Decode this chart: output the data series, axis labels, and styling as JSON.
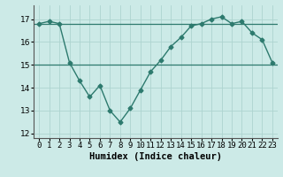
{
  "x": [
    0,
    1,
    2,
    3,
    4,
    5,
    6,
    7,
    8,
    9,
    10,
    11,
    12,
    13,
    14,
    15,
    16,
    17,
    18,
    19,
    20,
    21,
    22,
    23
  ],
  "y": [
    16.8,
    16.9,
    16.8,
    15.1,
    14.3,
    13.6,
    14.1,
    13.0,
    12.5,
    13.1,
    13.9,
    14.7,
    15.2,
    15.8,
    16.2,
    16.7,
    16.8,
    17.0,
    17.1,
    16.8,
    16.9,
    16.4,
    16.1,
    15.1
  ],
  "hline1_y": 16.8,
  "hline2_y": 15.0,
  "line_color": "#2d7a6e",
  "hline_color": "#2d7a6e",
  "bg_color": "#cceae7",
  "grid_color": "#aed4d0",
  "xlabel": "Humidex (Indice chaleur)",
  "ylim": [
    11.8,
    17.6
  ],
  "xlim": [
    -0.5,
    23.5
  ],
  "yticks": [
    12,
    13,
    14,
    15,
    16,
    17
  ],
  "xtick_labels": [
    "0",
    "1",
    "2",
    "3",
    "4",
    "5",
    "6",
    "7",
    "8",
    "9",
    "10",
    "11",
    "12",
    "13",
    "14",
    "15",
    "16",
    "17",
    "18",
    "19",
    "20",
    "21",
    "22",
    "23"
  ],
  "marker": "D",
  "marker_size": 2.5,
  "linewidth": 1.0,
  "label_fontsize": 7.5,
  "tick_fontsize": 6.5
}
